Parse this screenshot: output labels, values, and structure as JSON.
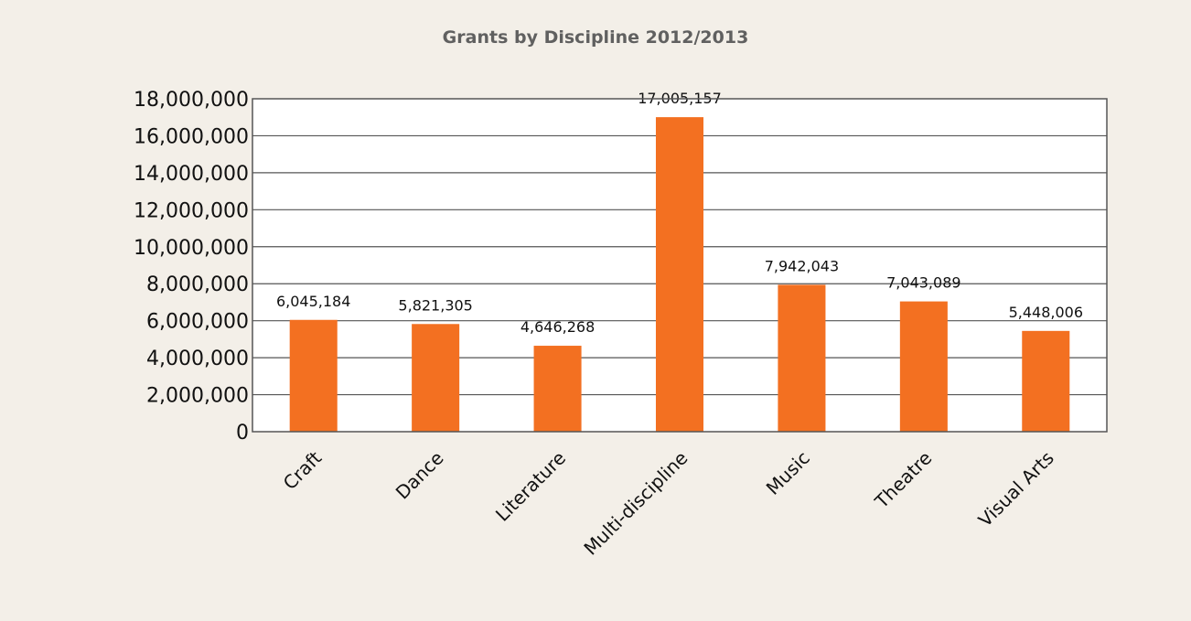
{
  "chart_data": {
    "type": "bar",
    "title": "Grants by Discipline 2012/2013",
    "xlabel": "",
    "ylabel": "",
    "categories": [
      "Craft",
      "Dance",
      "Literature",
      "Multi-discipline",
      "Music",
      "Theatre",
      "Visual Arts"
    ],
    "values": [
      6045184,
      5821305,
      4646268,
      17005157,
      7942043,
      7043089,
      5448006
    ],
    "data_labels": [
      "6,045,184",
      "5,821,305",
      "4,646,268",
      "17,005,157",
      "7,942,043",
      "7,043,089",
      "5,448,006"
    ],
    "ylim": [
      0,
      18000000
    ],
    "yticks": [
      0,
      2000000,
      4000000,
      6000000,
      8000000,
      10000000,
      12000000,
      14000000,
      16000000,
      18000000
    ],
    "ytick_labels": [
      "0",
      "2,000,000",
      "4,000,000",
      "6,000,000",
      "8,000,000",
      "10,000,000",
      "12,000,000",
      "14,000,000",
      "16,000,000",
      "18,000,000"
    ],
    "grid": true,
    "legend": "none",
    "colors": {
      "bar": "#f37021",
      "plot_background": "#ffffff",
      "page_background": "#f3efe8",
      "gridline": "#555555",
      "title": "#606060"
    }
  }
}
